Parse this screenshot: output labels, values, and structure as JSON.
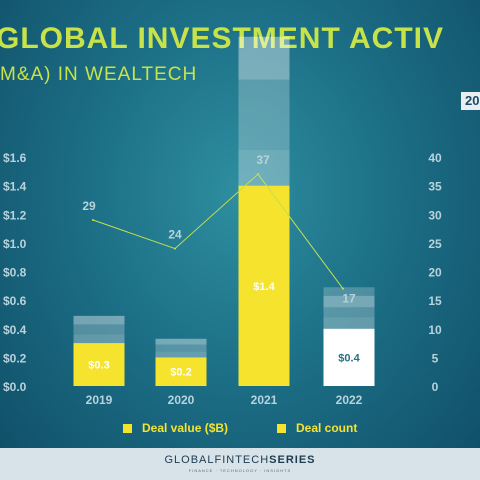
{
  "header": {
    "title": "GLOBAL INVESTMENT ACTIV",
    "subtitle": "M&A) IN WEALTECH",
    "badge": "20"
  },
  "footer": {
    "brand_regular": "GLOBALFINTECH",
    "brand_bold": "SERIES",
    "tagline": "FINANCE · TECHNOLOGY · INSIGHTS"
  },
  "colors": {
    "accent": "#c8e34a",
    "deal_value": "#f5e32e",
    "line": "#c6df4c",
    "tick": "#b8d3dc"
  },
  "chart_data": {
    "type": "bar",
    "categories": [
      "2019",
      "2020",
      "2021",
      "2022"
    ],
    "series": [
      {
        "name": "Deal value ($B)",
        "axis": "left",
        "values": [
          0.3,
          0.2,
          1.4,
          0.4
        ],
        "data_labels": [
          "$0.3",
          "$0.2",
          "$1.4",
          "$0.4"
        ],
        "stack_totals": [
          0.3,
          0.2,
          1.4,
          0.4
        ]
      },
      {
        "name": "Deal count",
        "axis": "right",
        "type": "line",
        "values": [
          29,
          24,
          37,
          17
        ],
        "data_labels": [
          "29",
          "24",
          "37",
          "17"
        ]
      }
    ],
    "stacked_bar_totals": [
      0.3,
      0.2,
      1.4,
      0.4
    ],
    "left_axis": {
      "ylim": [
        0,
        1.6
      ],
      "ticks": [
        "$0.0",
        "$0.2",
        "$0.4",
        "$0.6",
        "$0.8",
        "$1.0",
        "$1.2",
        "$1.4",
        "$1.6"
      ],
      "tick_values": [
        0,
        0.2,
        0.4,
        0.6,
        0.8,
        1.0,
        1.2,
        1.4,
        1.6
      ]
    },
    "right_axis": {
      "ylim": [
        0,
        40
      ],
      "ticks": [
        "0",
        "5",
        "10",
        "15",
        "20",
        "25",
        "30",
        "35",
        "40"
      ],
      "tick_values": [
        0,
        5,
        10,
        15,
        20,
        25,
        30,
        35,
        40
      ]
    },
    "bar_stacks": [
      [
        0.12,
        0.06,
        0.07,
        0.06
      ],
      [
        0.07,
        0.04,
        0.05,
        0.04
      ],
      [
        0.36,
        0.25,
        0.49,
        0.3
      ],
      [
        0.12,
        0.08,
        0.07,
        0.08,
        0.06
      ]
    ],
    "legend": [
      "Deal value ($B)",
      "Deal count"
    ],
    "legend_position": "bottom",
    "grid": false
  }
}
